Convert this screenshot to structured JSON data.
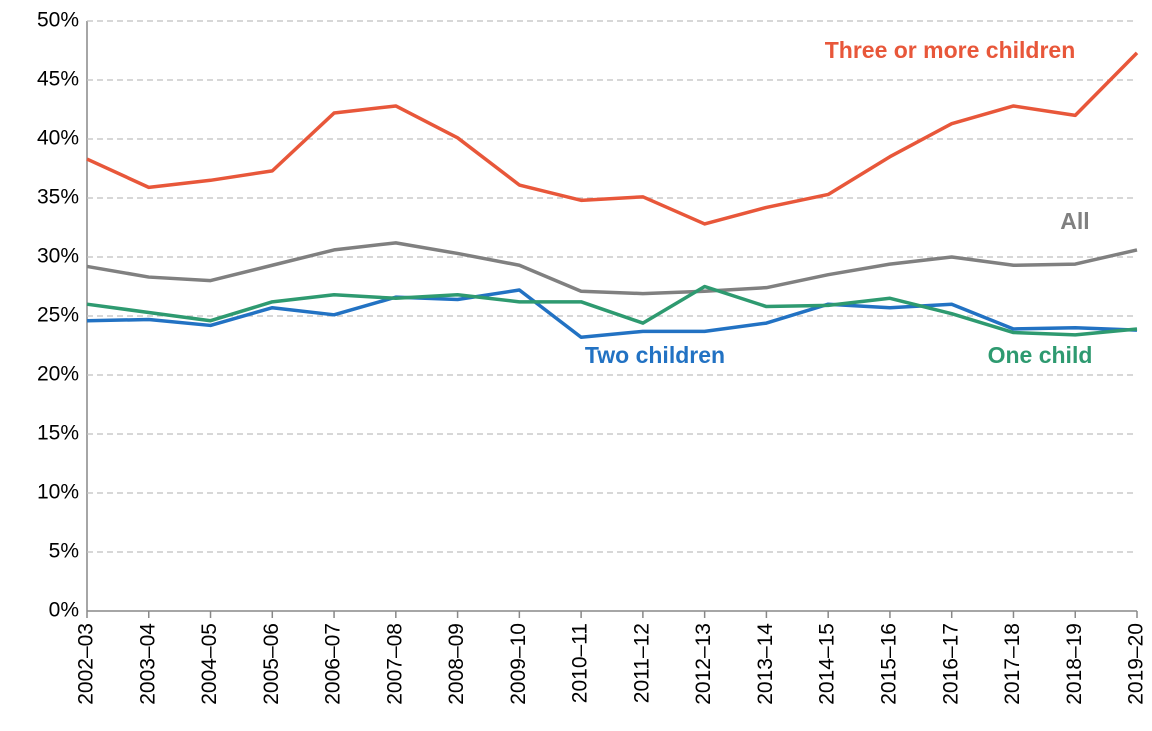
{
  "chart_data": {
    "type": "line",
    "categories": [
      "2002–03",
      "2003–04",
      "2004–05",
      "2005–06",
      "2006–07",
      "2007–08",
      "2008–09",
      "2009–10",
      "2010–11",
      "2011–12",
      "2012–13",
      "2013–14",
      "2014–15",
      "2015–16",
      "2016–17",
      "2017–18",
      "2018–19",
      "2019–20"
    ],
    "series": [
      {
        "name": "Three or more children",
        "color": "#e8573a",
        "values": [
          38.3,
          35.9,
          36.5,
          37.3,
          42.2,
          42.8,
          40.1,
          36.1,
          34.8,
          35.1,
          32.8,
          34.2,
          35.3,
          38.5,
          41.3,
          42.8,
          42.0,
          47.3
        ]
      },
      {
        "name": "All",
        "color": "#808080",
        "values": [
          29.2,
          28.3,
          28.0,
          29.3,
          30.6,
          31.2,
          30.3,
          29.3,
          27.1,
          26.9,
          27.1,
          27.4,
          28.5,
          29.4,
          30.0,
          29.3,
          29.4,
          30.6
        ]
      },
      {
        "name": "Two children",
        "color": "#2272c3",
        "values": [
          24.6,
          24.7,
          24.2,
          25.7,
          25.1,
          26.6,
          26.4,
          27.2,
          23.2,
          23.7,
          23.7,
          24.4,
          26.0,
          25.7,
          26.0,
          23.9,
          24.0,
          23.8
        ]
      },
      {
        "name": "One child",
        "color": "#2e9a70",
        "values": [
          26.0,
          25.3,
          24.6,
          26.2,
          26.8,
          26.5,
          26.8,
          26.2,
          26.2,
          24.4,
          27.5,
          25.8,
          25.9,
          26.5,
          25.2,
          23.6,
          23.4,
          23.9
        ]
      }
    ],
    "ylim": [
      0,
      50
    ],
    "yticks": [
      {
        "value": 0,
        "label": "0%"
      },
      {
        "value": 5,
        "label": "5%"
      },
      {
        "value": 10,
        "label": "10%"
      },
      {
        "value": 15,
        "label": "15%"
      },
      {
        "value": 20,
        "label": "20%"
      },
      {
        "value": 25,
        "label": "25%"
      },
      {
        "value": 30,
        "label": "30%"
      },
      {
        "value": 35,
        "label": "35%"
      },
      {
        "value": 40,
        "label": "40%"
      },
      {
        "value": 45,
        "label": "45%"
      },
      {
        "value": 50,
        "label": "50%"
      }
    ],
    "grid": true
  }
}
